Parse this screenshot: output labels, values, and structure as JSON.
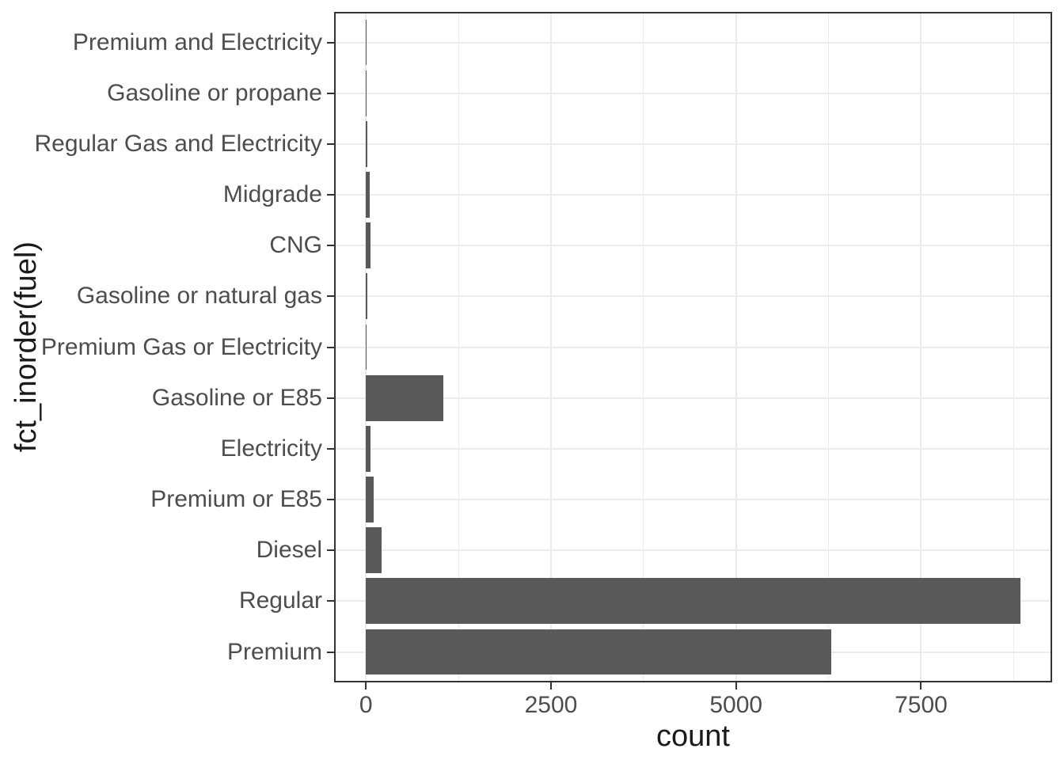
{
  "chart_data": {
    "type": "bar",
    "orientation": "horizontal",
    "title": "",
    "xlabel": "count",
    "ylabel": "fct_inorder(fuel)",
    "categories": [
      "Premium and Electricity",
      "Gasoline or propane",
      "Regular Gas and Electricity",
      "Midgrade",
      "CNG",
      "Gasoline or natural gas",
      "Premium Gas or Electricity",
      "Gasoline or E85",
      "Electricity",
      "Premium or E85",
      "Diesel",
      "Regular",
      "Premium"
    ],
    "values": [
      1,
      13,
      16,
      55,
      65,
      22,
      10,
      1050,
      62,
      100,
      210,
      8840,
      6290
    ],
    "category_order": "top-to-bottom as displayed",
    "x_ticks": [
      0,
      2500,
      5000,
      7500
    ],
    "x_tick_labels": [
      "0",
      "2500",
      "5000",
      "7500"
    ],
    "x_minor_breaks": [
      1250,
      3750,
      6250,
      8750
    ],
    "xlim": [
      -430,
      9270
    ],
    "grid": true,
    "legend": "none"
  },
  "colors": {
    "bar_fill": "#595959",
    "gridline": "#ebebeb",
    "axis_text": "#4d4d4d",
    "axis_title": "#1a1a1a",
    "panel_border": "#333333",
    "background": "#ffffff"
  }
}
